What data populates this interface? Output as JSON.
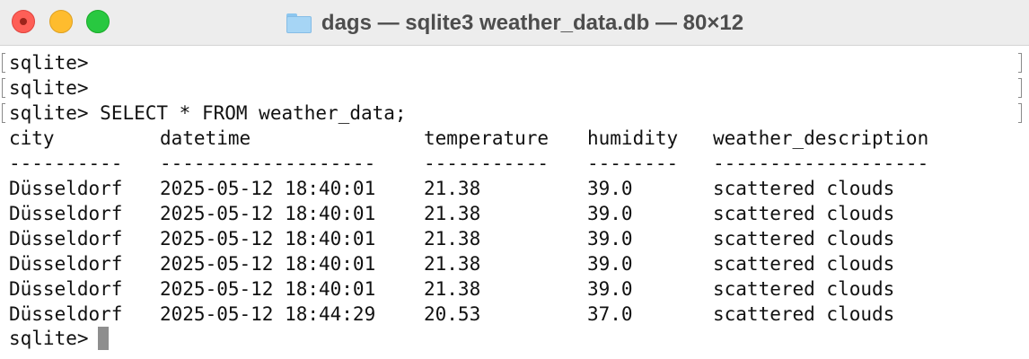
{
  "window": {
    "title": "dags — sqlite3 weather_data.db — 80×12",
    "colors": {
      "close": "#fe5f57",
      "minimize": "#febc2e",
      "zoom": "#28c840",
      "cursor": "#8e8e8e"
    }
  },
  "terminal": {
    "history": [
      {
        "prompt": "sqlite>",
        "command": ""
      },
      {
        "prompt": "sqlite>",
        "command": ""
      },
      {
        "prompt": "sqlite>",
        "command": "SELECT * FROM weather_data;"
      }
    ],
    "table": {
      "columns": [
        "city",
        "datetime",
        "temperature",
        "humidity",
        "weather_description"
      ],
      "separators": [
        "----------",
        "-------------------",
        "-----------",
        "--------",
        "-------------------"
      ],
      "rows": [
        [
          "Düsseldorf",
          "2025-05-12 18:40:01",
          "21.38",
          "39.0",
          "scattered clouds"
        ],
        [
          "Düsseldorf",
          "2025-05-12 18:40:01",
          "21.38",
          "39.0",
          "scattered clouds"
        ],
        [
          "Düsseldorf",
          "2025-05-12 18:40:01",
          "21.38",
          "39.0",
          "scattered clouds"
        ],
        [
          "Düsseldorf",
          "2025-05-12 18:40:01",
          "21.38",
          "39.0",
          "scattered clouds"
        ],
        [
          "Düsseldorf",
          "2025-05-12 18:40:01",
          "21.38",
          "39.0",
          "scattered clouds"
        ],
        [
          "Düsseldorf",
          "2025-05-12 18:44:29",
          "20.53",
          "37.0",
          "scattered clouds"
        ]
      ]
    },
    "current_prompt": "sqlite>",
    "current_input": ""
  }
}
